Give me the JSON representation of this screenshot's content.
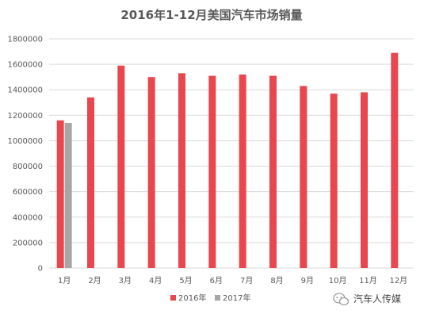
{
  "chart_data": {
    "type": "bar",
    "title": "2016年1-12月美国汽车市场销量",
    "categories": [
      "1月",
      "2月",
      "3月",
      "4月",
      "5月",
      "6月",
      "7月",
      "8月",
      "9月",
      "10月",
      "11月",
      "12月"
    ],
    "series": [
      {
        "name": "2016年",
        "color": "#e8474d",
        "values": [
          1160000,
          1340000,
          1590000,
          1500000,
          1530000,
          1510000,
          1520000,
          1510000,
          1430000,
          1370000,
          1380000,
          1690000
        ]
      },
      {
        "name": "2017年",
        "color": "#a6a6a6",
        "values": [
          1140000,
          null,
          null,
          null,
          null,
          null,
          null,
          null,
          null,
          null,
          null,
          null
        ]
      }
    ],
    "ylim": [
      0,
      1800000
    ],
    "yticks": [
      0,
      200000,
      400000,
      600000,
      800000,
      1000000,
      1200000,
      1400000,
      1600000,
      1800000
    ],
    "grid": true,
    "legend": "bottom"
  },
  "watermark": {
    "text": "汽车人传媒",
    "icon": "wechat-icon"
  }
}
